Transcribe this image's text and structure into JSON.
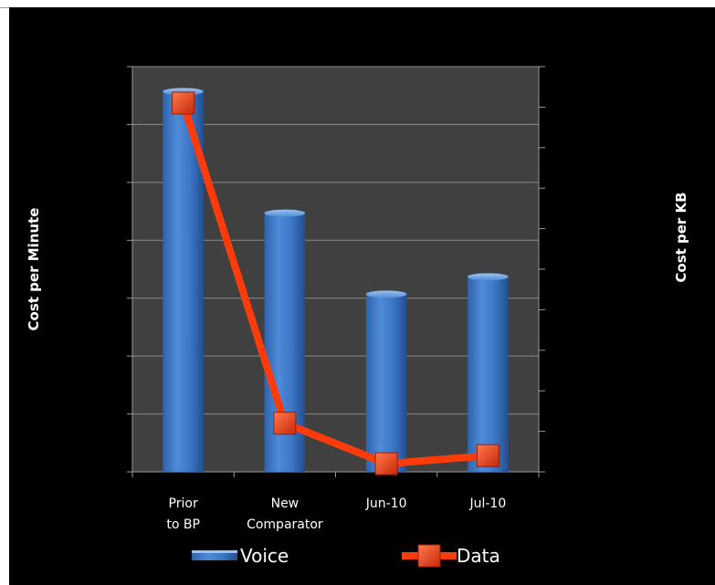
{
  "chart_data": {
    "type": "bar",
    "categories": [
      [
        "Prior",
        "to BP"
      ],
      [
        "New",
        "Comparator"
      ],
      [
        "Jun-10"
      ],
      [
        "Jul-10"
      ]
    ],
    "y_label": "Cost per Minute",
    "y2_label": "Cost per KB",
    "primary_axis": {
      "min": 0,
      "max": 7,
      "ticks": 7
    },
    "secondary_axis": {
      "min": 0,
      "max": 10,
      "ticks": 10
    },
    "grid": true,
    "legend_position": "bottom",
    "series": [
      {
        "name": "Voice",
        "type": "bar",
        "axis": "primary",
        "color": "#3a74c2",
        "values": [
          6.6,
          4.5,
          3.1,
          3.4
        ]
      },
      {
        "name": "Data",
        "type": "line",
        "axis": "secondary",
        "color": "#ff3b0a",
        "marker_color": "#e8380c",
        "values": [
          9.1,
          1.2,
          0.2,
          0.4
        ]
      }
    ]
  }
}
